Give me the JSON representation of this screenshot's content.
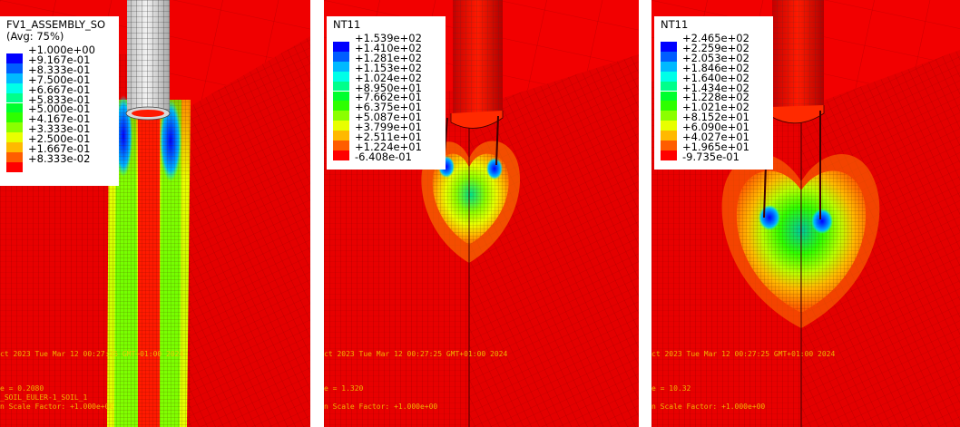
{
  "panels": [
    {
      "legend": {
        "title_lines": [
          "FV1_ASSEMBLY_SO",
          "(Avg: 75%)"
        ],
        "values": [
          "+1.000e+00",
          "+9.167e-01",
          "+8.333e-01",
          "+7.500e-01",
          "+6.667e-01",
          "+5.833e-01",
          "+5.000e-01",
          "+4.167e-01",
          "+3.333e-01",
          "+2.500e-01",
          "+1.667e-01",
          "+8.333e-02"
        ],
        "colors": [
          "#0000ff",
          "#005dff",
          "#00b9ff",
          "#00ffe8",
          "#00ff8b",
          "#00ff2e",
          "#2eff00",
          "#8bff00",
          "#e8ff00",
          "#ffb900",
          "#ff5d00",
          "#ff0000"
        ]
      },
      "footer": {
        "timestamp": "ct 2023   Tue Mar 12 00:27:25 GMT+01:00 2024",
        "step_line": "e =    0.2080",
        "var_line": "_SOIL_EULER-1_SOIL_1",
        "scale_line": "n Scale Factor: +1.000e+00"
      }
    },
    {
      "legend": {
        "title_lines": [
          "NT11"
        ],
        "values": [
          "+1.539e+02",
          "+1.410e+02",
          "+1.281e+02",
          "+1.153e+02",
          "+1.024e+02",
          "+8.950e+01",
          "+7.662e+01",
          "+6.375e+01",
          "+5.087e+01",
          "+3.799e+01",
          "+2.511e+01",
          "+1.224e+01",
          "-6.408e-01"
        ],
        "colors": [
          "#0000ff",
          "#005dff",
          "#00b9ff",
          "#00ffe8",
          "#00ff8b",
          "#00ff2e",
          "#2eff00",
          "#8bff00",
          "#e8ff00",
          "#ffb900",
          "#ff5d00",
          "#ff0000"
        ]
      },
      "footer": {
        "timestamp": "ct 2023   Tue Mar 12 00:27:25 GMT+01:00 2024",
        "step_line": "e =    1.320",
        "scale_line": "n Scale Factor: +1.000e+00"
      }
    },
    {
      "legend": {
        "title_lines": [
          "NT11"
        ],
        "values": [
          "+2.465e+02",
          "+2.259e+02",
          "+2.053e+02",
          "+1.846e+02",
          "+1.640e+02",
          "+1.434e+02",
          "+1.228e+02",
          "+1.021e+02",
          "+8.152e+01",
          "+6.090e+01",
          "+4.027e+01",
          "+1.965e+01",
          "-9.735e-01"
        ],
        "colors": [
          "#0000ff",
          "#005dff",
          "#00b9ff",
          "#00ffe8",
          "#00ff8b",
          "#00ff2e",
          "#2eff00",
          "#8bff00",
          "#e8ff00",
          "#ffb900",
          "#ff5d00",
          "#ff0000"
        ]
      },
      "footer": {
        "timestamp": "ct 2023   Tue Mar 12 00:27:25 GMT+01:00 2024",
        "step_line": "e =    10.32",
        "scale_line": "n Scale Factor: +1.000e+00"
      }
    }
  ]
}
